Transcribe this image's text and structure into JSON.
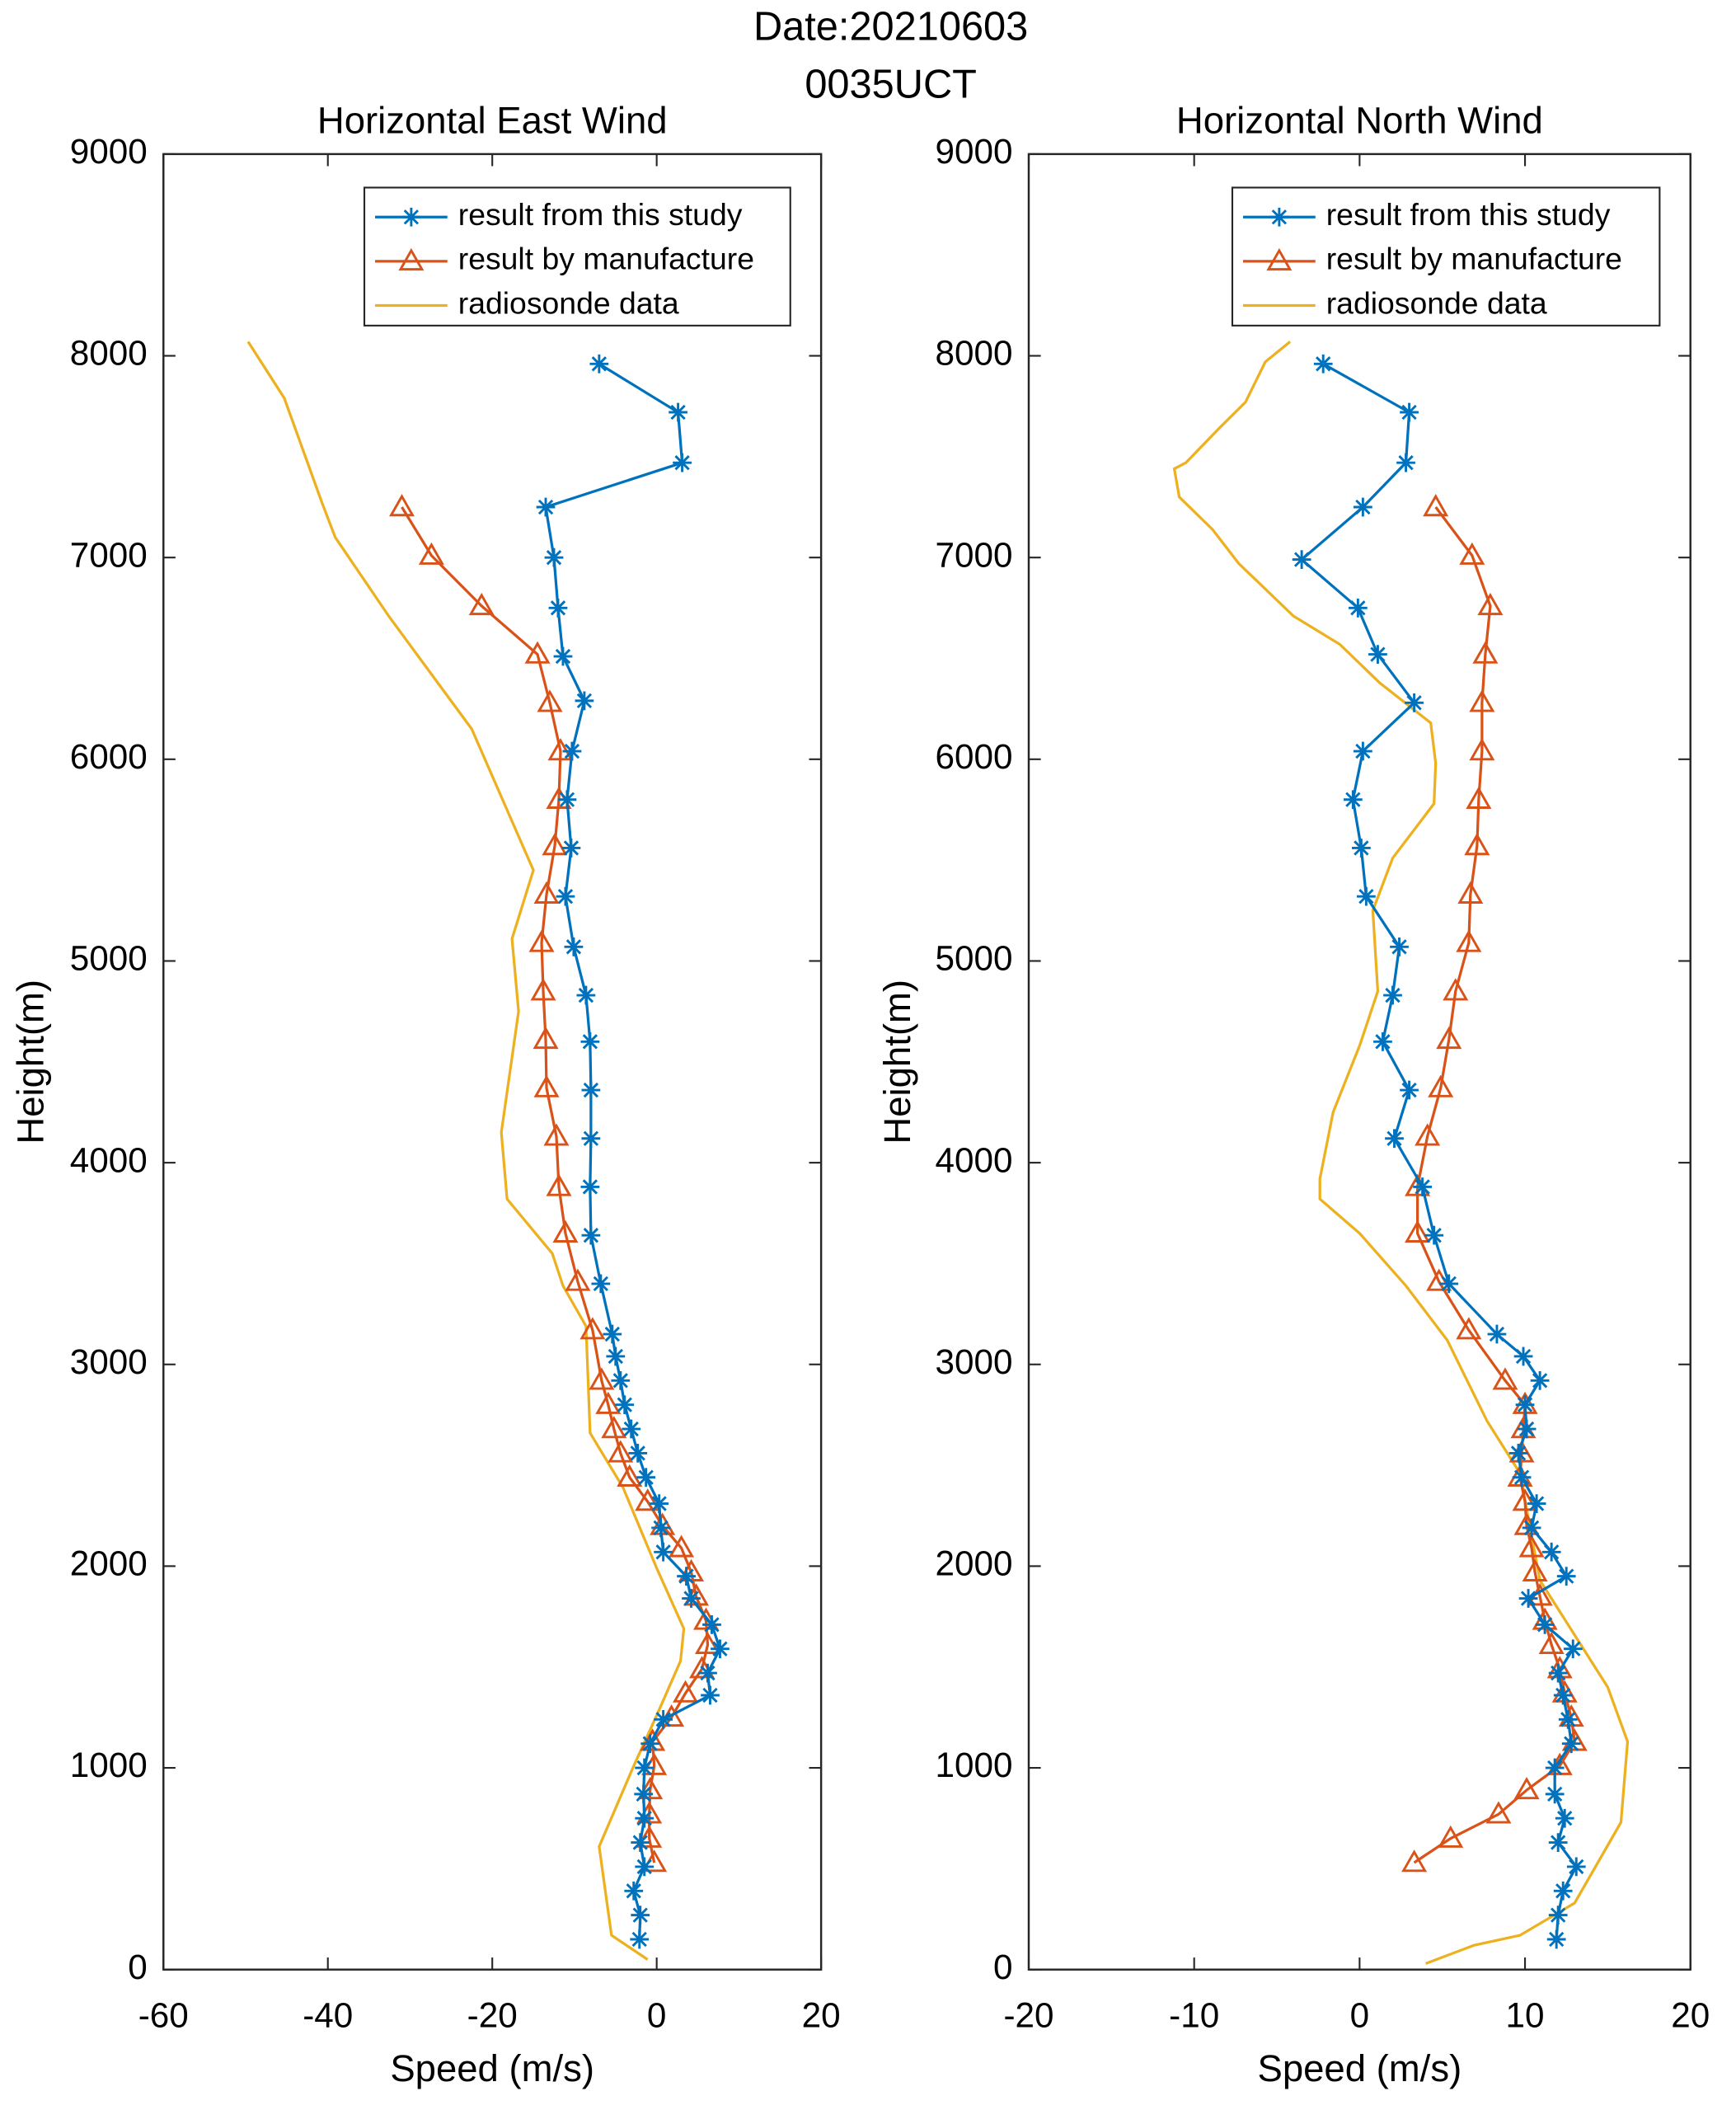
{
  "title": [
    "Date:20210603",
    "0035UCT"
  ],
  "chart_data": [
    {
      "type": "line",
      "title": "Horizontal East Wind",
      "xlabel": "Speed (m/s)",
      "ylabel": "Height(m)",
      "xlim": [
        -60,
        20
      ],
      "xticks": [
        -60,
        -40,
        -20,
        0,
        20
      ],
      "ylim": [
        0,
        9000
      ],
      "yticks": [
        0,
        1000,
        2000,
        3000,
        4000,
        5000,
        6000,
        7000,
        8000,
        9000
      ],
      "legend": "upper right",
      "series": [
        {
          "name": "result from this study",
          "color": "#0072BD",
          "marker": "asterisk",
          "x": [
            -7.0,
            2.6,
            3.1,
            -13.5,
            -12.5,
            -12.0,
            -11.4,
            -8.8,
            -10.3,
            -10.9,
            -10.4,
            -11.1,
            -10.1,
            -8.6,
            -8.1,
            -8.0,
            -8.0,
            -8.1,
            -8.0,
            -6.8,
            -5.4,
            -5.0,
            -4.4,
            -3.9,
            -3.1,
            -2.3,
            -1.3,
            0.3,
            0.5,
            0.8,
            3.6,
            4.2,
            6.7,
            7.7,
            6.2,
            6.5,
            0.8,
            -0.8,
            -1.5,
            -1.6,
            -1.5,
            -2.0,
            -1.5,
            -2.8,
            -2.0,
            -2.1
          ],
          "y": [
            7960,
            7720,
            7470,
            7250,
            7000,
            6750,
            6510,
            6290,
            6040,
            5800,
            5560,
            5320,
            5070,
            4830,
            4600,
            4360,
            4120,
            3880,
            3640,
            3400,
            3150,
            3040,
            2920,
            2800,
            2680,
            2560,
            2440,
            2310,
            2190,
            2070,
            1950,
            1840,
            1710,
            1590,
            1470,
            1360,
            1240,
            1120,
            1000,
            870,
            750,
            630,
            510,
            390,
            270,
            150
          ]
        },
        {
          "name": "result by manufacture",
          "color": "#D95319",
          "marker": "triangle",
          "x": [
            -31.0,
            -27.4,
            -21.3,
            -14.5,
            -13.0,
            -11.7,
            -11.9,
            -12.4,
            -13.4,
            -14.0,
            -13.8,
            -13.5,
            -13.4,
            -12.2,
            -11.9,
            -11.1,
            -9.6,
            -7.8,
            -6.7,
            -5.9,
            -5.2,
            -4.4,
            -3.3,
            -1.1,
            0.7,
            3.0,
            4.2,
            4.8,
            6.0,
            6.2,
            5.5,
            3.5,
            1.8,
            -0.5,
            -0.3,
            -0.8,
            -0.9,
            -0.9,
            -0.3
          ],
          "y": [
            7250,
            7010,
            6760,
            6520,
            6280,
            6040,
            5800,
            5570,
            5330,
            5090,
            4850,
            4610,
            4370,
            4130,
            3880,
            3650,
            3410,
            3170,
            2920,
            2800,
            2680,
            2560,
            2440,
            2320,
            2200,
            2090,
            1970,
            1850,
            1730,
            1610,
            1490,
            1370,
            1250,
            1130,
            1010,
            890,
            770,
            650,
            530
          ]
        },
        {
          "name": "radiosonde data",
          "color": "#EDB120",
          "marker": "none",
          "x": [
            -49.7,
            -45.3,
            -40.7,
            -39.1,
            -32.6,
            -22.5,
            -15.0,
            -17.6,
            -16.8,
            -18.9,
            -18.2,
            -12.7,
            -11.4,
            -8.6,
            -8.1,
            -4.1,
            0,
            3.3,
            2.9,
            0,
            -2.9,
            -7.0,
            -5.5,
            -1.1
          ],
          "y": [
            8070,
            7790,
            7270,
            7100,
            6710,
            6150,
            5450,
            5110,
            4750,
            4150,
            3820,
            3550,
            3390,
            3190,
            2660,
            2390,
            1990,
            1690,
            1530,
            1260,
            1000,
            610,
            170,
            50
          ]
        }
      ]
    },
    {
      "type": "line",
      "title": "Horizontal North Wind",
      "xlabel": "Speed (m/s)",
      "ylabel": "Height(m)",
      "xlim": [
        -20,
        20
      ],
      "xticks": [
        -20,
        -10,
        0,
        10,
        20
      ],
      "ylim": [
        0,
        9000
      ],
      "yticks": [
        0,
        1000,
        2000,
        3000,
        4000,
        5000,
        6000,
        7000,
        8000,
        9000
      ],
      "legend": "upper right",
      "series": [
        {
          "name": "result from this study",
          "color": "#0072BD",
          "marker": "asterisk",
          "x": [
            -2.2,
            3.0,
            2.8,
            0.2,
            -3.5,
            -0.1,
            1.1,
            3.3,
            0.2,
            -0.4,
            0.1,
            0.4,
            2.4,
            2.0,
            1.4,
            3.0,
            2.1,
            3.8,
            4.5,
            5.4,
            8.3,
            9.9,
            10.9,
            10.0,
            10.1,
            9.6,
            9.8,
            10.7,
            10.4,
            11.6,
            12.5,
            10.2,
            11.2,
            12.9,
            12.0,
            12.3,
            12.6,
            12.8,
            11.8,
            11.8,
            12.4,
            12.0,
            13.1,
            12.3,
            12.0,
            11.9
          ],
          "y": [
            7960,
            7720,
            7470,
            7250,
            6990,
            6750,
            6520,
            6280,
            6040,
            5800,
            5560,
            5320,
            5070,
            4830,
            4600,
            4360,
            4120,
            3880,
            3640,
            3400,
            3150,
            3040,
            2920,
            2800,
            2680,
            2560,
            2440,
            2310,
            2190,
            2070,
            1950,
            1840,
            1710,
            1590,
            1470,
            1360,
            1240,
            1120,
            1000,
            870,
            750,
            630,
            510,
            390,
            270,
            150
          ]
        },
        {
          "name": "result by manufacture",
          "color": "#D95319",
          "marker": "triangle",
          "x": [
            4.6,
            6.8,
            7.9,
            7.6,
            7.4,
            7.4,
            7.2,
            7.1,
            6.7,
            6.6,
            5.8,
            5.4,
            4.9,
            4.1,
            3.5,
            3.5,
            4.8,
            6.6,
            8.8,
            10.0,
            9.9,
            9.8,
            9.7,
            10.0,
            10.1,
            10.4,
            10.6,
            10.9,
            11.2,
            11.6,
            12.1,
            12.4,
            12.8,
            13.0,
            12.1,
            10.1,
            8.4,
            5.5,
            3.3
          ],
          "y": [
            7250,
            7010,
            6760,
            6520,
            6280,
            6040,
            5800,
            5570,
            5330,
            5090,
            4850,
            4610,
            4370,
            4130,
            3880,
            3650,
            3410,
            3170,
            2920,
            2800,
            2680,
            2560,
            2440,
            2320,
            2200,
            2090,
            1970,
            1850,
            1730,
            1610,
            1490,
            1370,
            1250,
            1130,
            1010,
            890,
            770,
            650,
            530
          ]
        },
        {
          "name": "radiosonde data",
          "color": "#EDB120",
          "marker": "none",
          "x": [
            -4.2,
            -5.7,
            -6.9,
            -8.5,
            -10.5,
            -11.2,
            -10.9,
            -8.9,
            -7.3,
            -4.0,
            -1.2,
            1.2,
            4.3,
            4.6,
            4.5,
            2.0,
            0.8,
            1.1,
            0,
            -1.6,
            -2.4,
            -2.4,
            0,
            2.8,
            5.3,
            7.7,
            9.7,
            10.9,
            15.0,
            16.2,
            15.8,
            13.0,
            9.7,
            6.9,
            4.0
          ],
          "y": [
            8070,
            7970,
            7770,
            7640,
            7470,
            7440,
            7300,
            7140,
            6970,
            6710,
            6570,
            6380,
            6180,
            5980,
            5780,
            5510,
            5250,
            4850,
            4580,
            4250,
            3920,
            3820,
            3650,
            3390,
            3120,
            2720,
            2460,
            1930,
            1400,
            1130,
            730,
            330,
            170,
            120,
            30
          ]
        }
      ]
    }
  ]
}
